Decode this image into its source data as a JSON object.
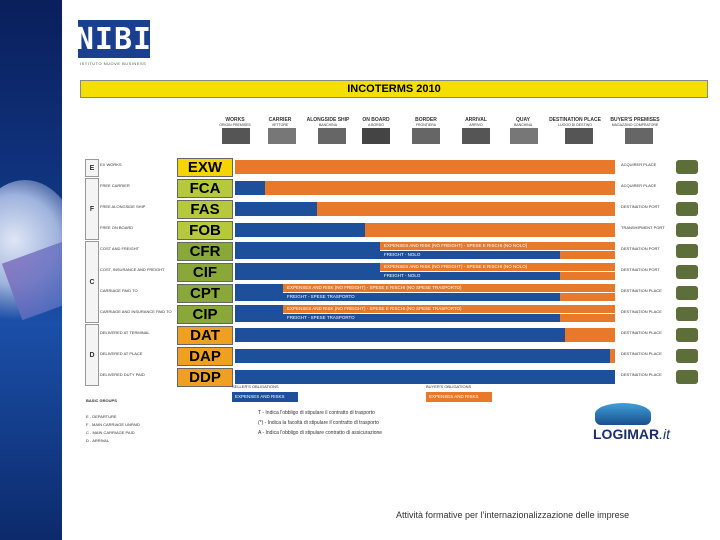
{
  "brand": {
    "logo": "NIBI",
    "logo_sub": "ISTITUTO NUOVE BUSINESS"
  },
  "title": "INCOTERMS 2010",
  "columns": [
    {
      "label": "WORKS",
      "sub": "ORIGIN PREMISES"
    },
    {
      "label": "CARRIER",
      "sub": "VETTORE"
    },
    {
      "label": "ALONGSIDE SHIP",
      "sub": "BANCHINA"
    },
    {
      "label": "ON BOARD",
      "sub": "A BORDO"
    },
    {
      "label": "BORDER",
      "sub": "FRONTIERA"
    },
    {
      "label": "ARRIVAL",
      "sub": "ARRIVO"
    },
    {
      "label": "QUAY",
      "sub": "BANCHINA"
    },
    {
      "label": "DESTINATION PLACE",
      "sub": "LUOGO DI DESTINO"
    },
    {
      "label": "BUYER'S PREMISES",
      "sub": "MAGAZZINO COMPRATORE"
    }
  ],
  "groups": [
    {
      "letter": "E"
    },
    {
      "letter": "F"
    },
    {
      "letter": "C"
    },
    {
      "letter": "D"
    }
  ],
  "rows": [
    {
      "code": "EXW",
      "label": "EX WORKS",
      "end": "ACQUIRER PLACE",
      "color": "#f5d400"
    },
    {
      "code": "FCA",
      "label": "FREE CARRIER",
      "end": "ACQUIRER PLACE",
      "color": "#b6c93c"
    },
    {
      "code": "FAS",
      "label": "FREE ALONGSIDE SHIP",
      "end": "DESTINATION PORT",
      "color": "#b6c93c"
    },
    {
      "code": "FOB",
      "label": "FREE ON BOARD",
      "end": "TRANSHIPMENT PORT",
      "color": "#b6c93c"
    },
    {
      "code": "CFR",
      "label": "COST AND FREIGHT",
      "end": "DESTINATION PORT",
      "color": "#8aa83a"
    },
    {
      "code": "CIF",
      "label": "COST, INSURANCE AND FREIGHT",
      "end": "DESTINATION PORT",
      "color": "#8aa83a"
    },
    {
      "code": "CPT",
      "label": "CARRIAGE PAID TO",
      "end": "DESTINATION PLACE",
      "color": "#8aa83a"
    },
    {
      "code": "CIP",
      "label": "CARRIAGE AND INSURANCE PAID TO",
      "end": "DESTINATION PLACE",
      "color": "#8aa83a"
    },
    {
      "code": "DAT",
      "label": "DELIVERED AT TERMINAL",
      "end": "DESTINATION PLACE",
      "color": "#f0a020"
    },
    {
      "code": "DAP",
      "label": "DELIVERED AT PLACE",
      "end": "DESTINATION PLACE",
      "color": "#f0a020"
    },
    {
      "code": "DDP",
      "label": "DELIVERED DUTY PAID",
      "end": "DESTINATION PLACE",
      "color": "#f0a020"
    }
  ],
  "bar_texts": {
    "expenses_risk": "EXPENSES AND RISK (NO FREIGHT) - SPESE E RISCHI (NO NOLO)",
    "freight_nolo": "FREIGHT - NOLO",
    "expenses_risk_transport": "EXPENSES AND RISK (NO FREIGHT) - SPESE E RISCHI (NO SPESE TRASPORTO)",
    "freight_transport": "FREIGHT - SPESE TRASPORTO"
  },
  "bottom": {
    "seller_label": "SELLER'S OBLIGATIONS",
    "seller_box": "EXPENSES AND RISKS",
    "buyer_label": "BUYER'S OBLIGATIONS",
    "buyer_box": "EXPENSES AND RISKS",
    "basic_groups": "BASIC GROUPS",
    "legend": [
      "E - DEPARTURE",
      "F - MAIN CARRIAGE UNPAID",
      "C - MAIN CARRIAGE PAID",
      "D - ARRIVAL"
    ],
    "notes": [
      "T - Indica l'obbligo di stipulare il contratto di trasporto",
      "(*) - Indica la facoltà di stipulare il contratto di trasporto",
      "A - Indica l'obbligo di stipulare contratto di assicurazione"
    ]
  },
  "partner_logo": {
    "name": "LOGIMAR",
    "suffix": ".it"
  },
  "footer": "Attività formative per l’internazionalizzazione delle imprese"
}
